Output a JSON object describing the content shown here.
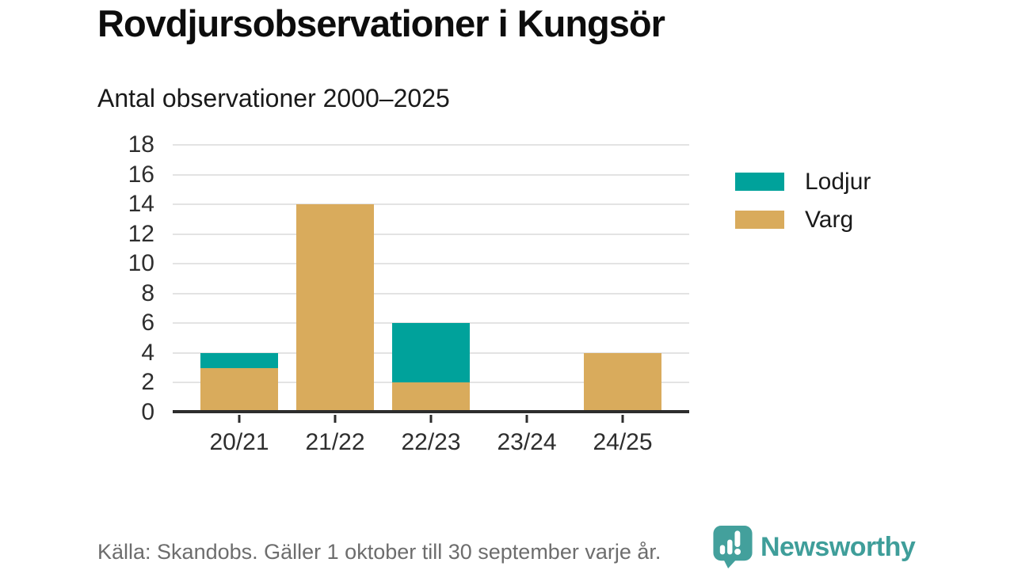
{
  "title": "Rovdjursobservationer i Kungsör",
  "subtitle": "Antal observationer 2000–2025",
  "footer": {
    "source": "Källa: Skandobs. Gäller 1 oktober till 30 september varje år."
  },
  "branding": {
    "name": "Newsworthy",
    "icon": "newsworthy-speech-bubble-bar-chart-icon",
    "icon_color": "#43a09c",
    "wordmark_color": "#3f9e9a"
  },
  "colors": {
    "lodjur": "#00a29b",
    "varg": "#d9ab5c",
    "gridline": "#e3e3e3",
    "axis": "#2d2d2d",
    "tick_text": "#2e2e2e",
    "muted_text": "#6d6d6d"
  },
  "chart_data": {
    "type": "bar",
    "stacked": true,
    "title": "Rovdjursobservationer i Kungsör",
    "subtitle": "Antal observationer 2000–2025",
    "categories": [
      "20/21",
      "21/22",
      "22/23",
      "23/24",
      "24/25"
    ],
    "series": [
      {
        "name": "Lodjur",
        "color": "#00a29b",
        "values": [
          1,
          0,
          4,
          0,
          0
        ]
      },
      {
        "name": "Varg",
        "color": "#d9ab5c",
        "values": [
          3,
          14,
          2,
          0,
          4
        ]
      }
    ],
    "totals": [
      4,
      14,
      6,
      0,
      4
    ],
    "xlabel": "",
    "ylabel": "",
    "ylim": [
      0,
      18
    ],
    "ytick_step": 2,
    "yticks": [
      0,
      2,
      4,
      6,
      8,
      10,
      12,
      14,
      16,
      18
    ],
    "grid": true,
    "legend_position": "right"
  }
}
